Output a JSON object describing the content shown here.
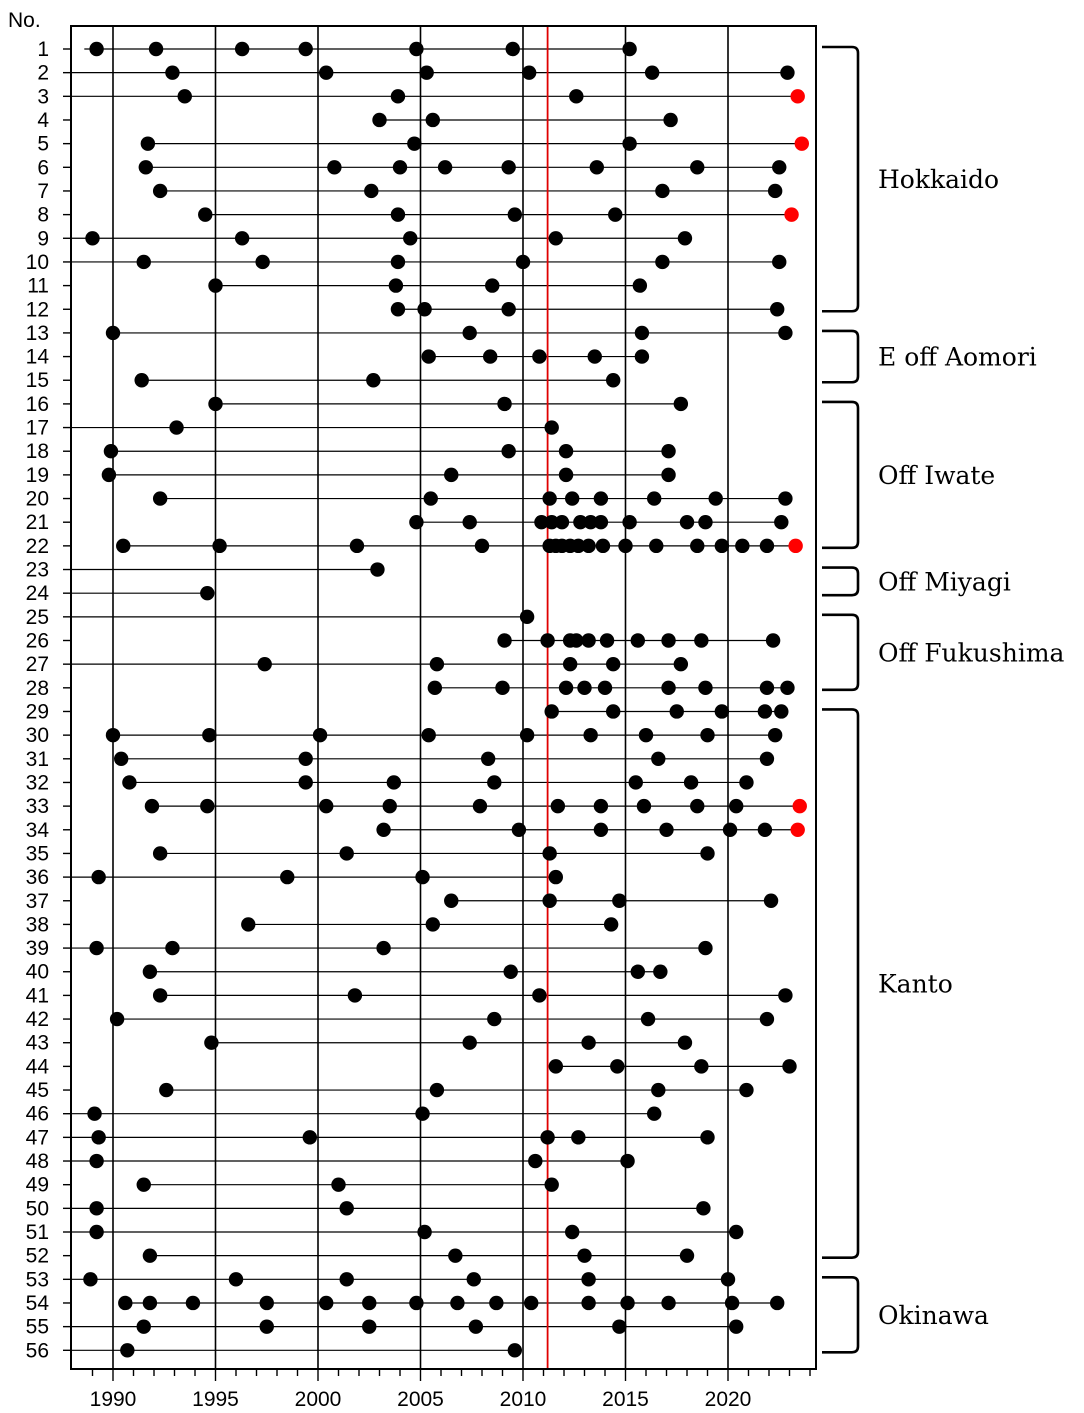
{
  "chart_data": {
    "type": "scatter",
    "title": "",
    "xlabel": "",
    "ylabel": "No.",
    "xlim": [
      1988,
      2024.6
    ],
    "x_ticks": [
      "1990",
      "1995",
      "2000",
      "2005",
      "2010",
      "2015",
      "2020"
    ],
    "grid": true,
    "reference_line": {
      "x": 2011.2,
      "color": "#e00000"
    },
    "colors": {
      "normal": "#000000",
      "highlight": "#ff0000"
    },
    "rows": [
      {
        "no": "1",
        "start": 1988.6,
        "points": [
          1989.2,
          1992.1,
          1996.3,
          1999.4,
          2004.8,
          2009.5,
          2015.2
        ],
        "red": [],
        "end": 2015.2
      },
      {
        "no": "2",
        "start": 1988.0,
        "points": [
          1992.9,
          2000.4,
          2005.3,
          2010.3,
          2016.3,
          2022.9
        ],
        "red": [],
        "end": 2022.9
      },
      {
        "no": "3",
        "start": 1988.0,
        "points": [
          1993.5,
          2003.9,
          2012.6
        ],
        "red": [
          2023.4
        ],
        "end": 2023.4
      },
      {
        "no": "4",
        "start": 2003.0,
        "points": [
          2003.0,
          2005.6,
          2017.2
        ],
        "red": [],
        "end": 2017.2
      },
      {
        "no": "5",
        "start": 1991.7,
        "points": [
          1991.7,
          2004.7,
          2015.2
        ],
        "red": [
          2023.6
        ],
        "end": 2023.6
      },
      {
        "no": "6",
        "start": 1991.6,
        "points": [
          1991.6,
          2000.8,
          2004.0,
          2006.2,
          2009.3,
          2013.6,
          2018.5,
          2022.5
        ],
        "red": [],
        "end": 2022.5
      },
      {
        "no": "7",
        "start": 1992.3,
        "points": [
          1992.3,
          2002.6,
          2016.8,
          2022.3
        ],
        "red": [],
        "end": 2022.3
      },
      {
        "no": "8",
        "start": 1994.5,
        "points": [
          1994.5,
          2003.9,
          2009.6,
          2014.5
        ],
        "red": [
          2023.1
        ],
        "end": 2023.1
      },
      {
        "no": "9",
        "start": 1988.0,
        "points": [
          1989.0,
          1996.3,
          2004.5,
          2011.6,
          2017.9
        ],
        "red": [],
        "end": 2017.9
      },
      {
        "no": "10",
        "start": 1988.0,
        "points": [
          1991.5,
          1997.3,
          2003.9,
          2010.0,
          2016.8,
          2022.5
        ],
        "red": [],
        "end": 2022.5
      },
      {
        "no": "11",
        "start": 1995.0,
        "points": [
          1995.0,
          2003.8,
          2008.5,
          2015.7
        ],
        "red": [],
        "end": 2015.7
      },
      {
        "no": "12",
        "start": 2003.9,
        "points": [
          2003.9,
          2005.2,
          2009.3,
          2022.4
        ],
        "red": [],
        "end": 2022.4
      },
      {
        "no": "13",
        "start": 1990.0,
        "points": [
          1990.0,
          2007.4,
          2015.8,
          2022.8
        ],
        "red": [],
        "end": 2022.8
      },
      {
        "no": "14",
        "start": 2005.4,
        "points": [
          2005.4,
          2008.4,
          2010.8,
          2013.5,
          2015.8
        ],
        "red": [],
        "end": 2015.8
      },
      {
        "no": "15",
        "start": 1991.4,
        "points": [
          1991.4,
          2002.7,
          2014.4
        ],
        "red": [],
        "end": 2014.4
      },
      {
        "no": "16",
        "start": 1995.0,
        "points": [
          1995.0,
          2009.1,
          2017.7
        ],
        "red": [],
        "end": 2017.7
      },
      {
        "no": "17",
        "start": 1988.0,
        "points": [
          1993.1,
          2011.4
        ],
        "red": [],
        "end": 2011.4
      },
      {
        "no": "18",
        "start": 1989.9,
        "points": [
          1989.9,
          2009.3,
          2012.1,
          2017.1
        ],
        "red": [],
        "end": 2017.1
      },
      {
        "no": "19",
        "start": 1989.8,
        "points": [
          1989.8,
          2006.5,
          2012.1,
          2017.1
        ],
        "red": [],
        "end": 2017.1
      },
      {
        "no": "20",
        "start": 1992.3,
        "points": [
          1992.3,
          2005.5,
          2011.3,
          2012.4,
          2013.8,
          2016.4,
          2019.4,
          2022.8
        ],
        "red": [],
        "end": 2022.8
      },
      {
        "no": "21",
        "start": 2004.8,
        "points": [
          2004.8,
          2007.4,
          2010.9,
          2011.4,
          2011.9,
          2012.8,
          2013.3,
          2013.8,
          2015.2,
          2018.0,
          2018.9,
          2022.6
        ],
        "red": [],
        "end": 2022.6
      },
      {
        "no": "22",
        "start": 1990.5,
        "points": [
          1990.5,
          1995.2,
          2001.9,
          2008.0,
          2011.3,
          2011.6,
          2011.9,
          2012.3,
          2012.7,
          2013.2,
          2013.9,
          2015.0,
          2016.5,
          2018.5,
          2019.7,
          2020.7,
          2021.9
        ],
        "red": [
          2023.3
        ],
        "end": 2023.3
      },
      {
        "no": "23",
        "start": 1988.0,
        "points": [
          2002.9
        ],
        "red": [],
        "end": 2002.9
      },
      {
        "no": "24",
        "start": 1988.0,
        "points": [
          1994.6
        ],
        "red": [],
        "end": 1994.6
      },
      {
        "no": "25",
        "start": 1988.0,
        "points": [
          2010.2
        ],
        "red": [],
        "end": 2010.2
      },
      {
        "no": "26",
        "start": 2009.1,
        "points": [
          2009.1,
          2011.2,
          2012.3,
          2012.6,
          2013.2,
          2014.1,
          2015.6,
          2017.1,
          2018.7,
          2022.2
        ],
        "red": [],
        "end": 2022.2
      },
      {
        "no": "27",
        "start": 1988.0,
        "points": [
          1997.4,
          2005.8,
          2012.3,
          2014.4,
          2017.7
        ],
        "red": [],
        "end": 2017.7
      },
      {
        "no": "28",
        "start": 2005.7,
        "points": [
          2005.7,
          2009.0,
          2012.1,
          2013.0,
          2014.0,
          2017.1,
          2018.9,
          2021.9,
          2022.9
        ],
        "red": [],
        "end": 2022.9
      },
      {
        "no": "29",
        "start": 2011.4,
        "points": [
          2011.4,
          2014.4,
          2017.5,
          2019.7,
          2021.8,
          2022.6
        ],
        "red": [],
        "end": 2022.6
      },
      {
        "no": "30",
        "start": 1990.0,
        "points": [
          1990.0,
          1994.7,
          2000.1,
          2005.4,
          2010.2,
          2013.3,
          2016.0,
          2019.0,
          2022.3
        ],
        "red": [],
        "end": 2022.3
      },
      {
        "no": "31",
        "start": 1990.4,
        "points": [
          1990.4,
          1999.4,
          2008.3,
          2016.6,
          2021.9
        ],
        "red": [],
        "end": 2021.9
      },
      {
        "no": "32",
        "start": 1990.8,
        "points": [
          1990.8,
          1999.4,
          2003.7,
          2008.6,
          2015.5,
          2018.2,
          2020.9
        ],
        "red": [],
        "end": 2020.9
      },
      {
        "no": "33",
        "start": 1991.9,
        "points": [
          1991.9,
          1994.6,
          2000.4,
          2003.5,
          2007.9,
          2011.7,
          2013.8,
          2015.9,
          2018.5,
          2020.4
        ],
        "red": [
          2023.5
        ],
        "end": 2023.5
      },
      {
        "no": "34",
        "start": 2003.2,
        "points": [
          2003.2,
          2009.8,
          2013.8,
          2017.0,
          2020.1,
          2021.8
        ],
        "red": [
          2023.4
        ],
        "end": 2023.4
      },
      {
        "no": "35",
        "start": 1992.3,
        "points": [
          1992.3,
          2001.4,
          2011.3,
          2019.0
        ],
        "red": [],
        "end": 2019.0
      },
      {
        "no": "36",
        "start": 1988.0,
        "points": [
          1989.3,
          1998.5,
          2005.1,
          2011.6
        ],
        "red": [],
        "end": 2011.6
      },
      {
        "no": "37",
        "start": 2006.5,
        "points": [
          2006.5,
          2011.3,
          2014.7,
          2022.1
        ],
        "red": [],
        "end": 2022.1
      },
      {
        "no": "38",
        "start": 1996.6,
        "points": [
          1996.6,
          2005.6,
          2014.3
        ],
        "red": [],
        "end": 2014.3
      },
      {
        "no": "39",
        "start": 1988.0,
        "points": [
          1989.2,
          1992.9,
          2003.2,
          2018.9
        ],
        "red": [],
        "end": 2018.9
      },
      {
        "no": "40",
        "start": 1991.8,
        "points": [
          1991.8,
          2009.4,
          2015.6,
          2016.7
        ],
        "red": [],
        "end": 2016.7
      },
      {
        "no": "41",
        "start": 1992.3,
        "points": [
          1992.3,
          2001.8,
          2010.8,
          2022.8
        ],
        "red": [],
        "end": 2022.8
      },
      {
        "no": "42",
        "start": 1990.2,
        "points": [
          1990.2,
          2008.6,
          2016.1,
          2021.9
        ],
        "red": [],
        "end": 2021.9
      },
      {
        "no": "43",
        "start": 1994.8,
        "points": [
          1994.8,
          2007.4,
          2013.2,
          2017.9
        ],
        "red": [],
        "end": 2017.9
      },
      {
        "no": "44",
        "start": 2011.6,
        "points": [
          2011.6,
          2014.6,
          2018.7,
          2023.0
        ],
        "red": [],
        "end": 2023.0
      },
      {
        "no": "45",
        "start": 1992.6,
        "points": [
          1992.6,
          2005.8,
          2016.6,
          2020.9
        ],
        "red": [],
        "end": 2020.9
      },
      {
        "no": "46",
        "start": 1988.0,
        "points": [
          1989.1,
          2005.1,
          2016.4
        ],
        "red": [],
        "end": 2016.4
      },
      {
        "no": "47",
        "start": 1988.0,
        "points": [
          1989.3,
          1999.6,
          2011.2,
          2012.7,
          2019.0
        ],
        "red": [],
        "end": 2019.0
      },
      {
        "no": "48",
        "start": 1988.0,
        "points": [
          1989.2,
          2010.6,
          2015.1
        ],
        "red": [],
        "end": 2015.1
      },
      {
        "no": "49",
        "start": 1991.5,
        "points": [
          1991.5,
          2001.0,
          2011.4
        ],
        "red": [],
        "end": 2011.4
      },
      {
        "no": "50",
        "start": 1988.0,
        "points": [
          1989.2,
          2001.4,
          2018.8
        ],
        "red": [],
        "end": 2018.8
      },
      {
        "no": "51",
        "start": 1988.0,
        "points": [
          1989.2,
          2005.2,
          2012.4,
          2020.4
        ],
        "red": [],
        "end": 2020.4
      },
      {
        "no": "52",
        "start": 1991.8,
        "points": [
          1991.8,
          2006.7,
          2013.0,
          2018.0
        ],
        "red": [],
        "end": 2018.0
      },
      {
        "no": "53",
        "start": 1988.0,
        "points": [
          1988.9,
          1996.0,
          2001.4,
          2007.6,
          2013.2,
          2020.0
        ],
        "red": [],
        "end": 2020.0
      },
      {
        "no": "54",
        "start": 1990.6,
        "points": [
          1990.6,
          1991.8,
          1993.9,
          1997.5,
          2000.4,
          2002.5,
          2004.8,
          2006.8,
          2008.7,
          2010.4,
          2013.2,
          2015.1,
          2017.1,
          2020.2,
          2022.4
        ],
        "red": [],
        "end": 2022.4
      },
      {
        "no": "55",
        "start": 1988.0,
        "points": [
          1991.5,
          1997.5,
          2002.5,
          2007.7,
          2014.7,
          2020.4
        ],
        "red": [],
        "end": 2020.4
      },
      {
        "no": "56",
        "start": 1988.0,
        "points": [
          1990.7,
          2009.6
        ],
        "red": [],
        "end": 2009.6
      }
    ],
    "regions": [
      {
        "name": "Hokkaido",
        "from": 1,
        "to": 12
      },
      {
        "name": "E off Aomori",
        "from": 13,
        "to": 15
      },
      {
        "name": "Off Iwate",
        "from": 16,
        "to": 22
      },
      {
        "name": "Off Miyagi",
        "from": 23,
        "to": 24
      },
      {
        "name": "Off Fukushima",
        "from": 25,
        "to": 28
      },
      {
        "name": "Kanto",
        "from": 29,
        "to": 52
      },
      {
        "name": "Okinawa",
        "from": 53,
        "to": 56
      }
    ]
  }
}
